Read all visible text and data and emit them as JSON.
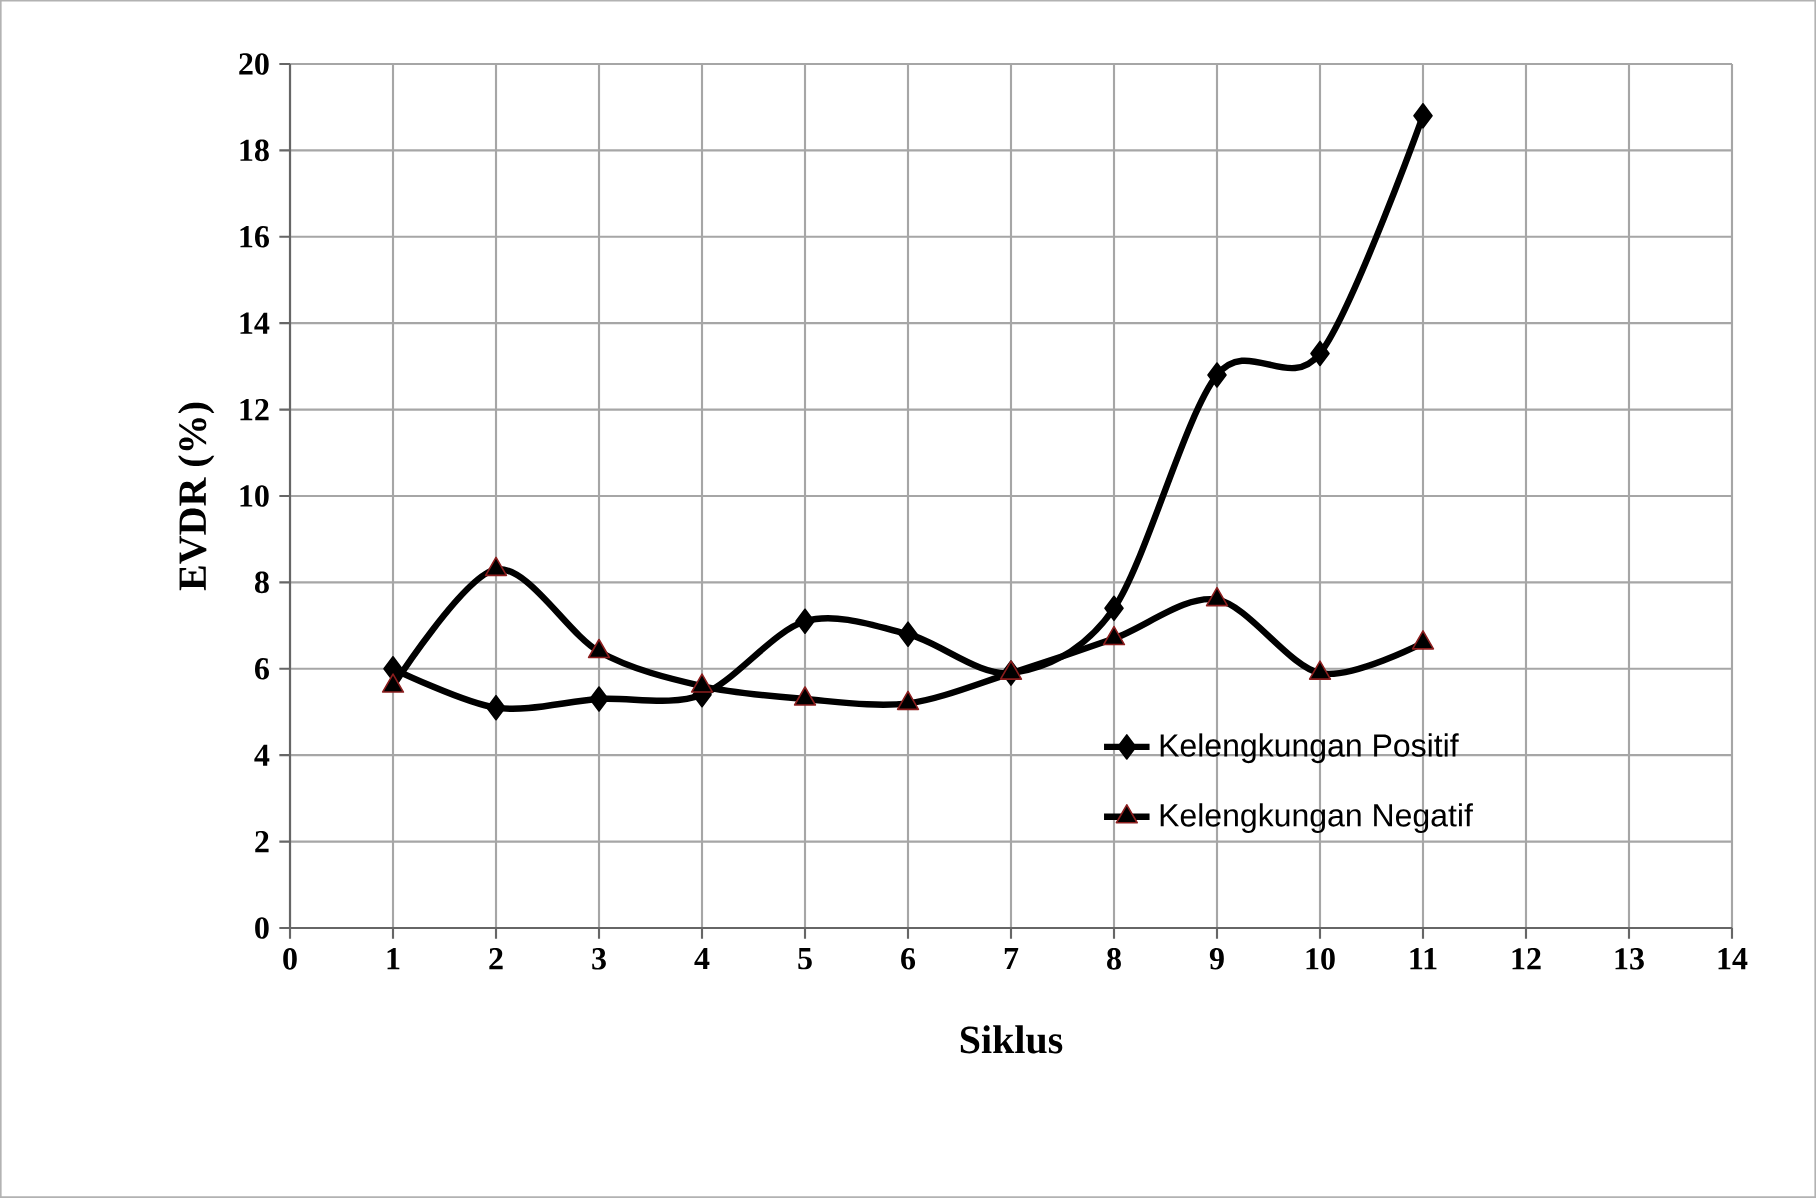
{
  "chart_data": {
    "type": "line",
    "xlabel": "Siklus",
    "ylabel": "EVDR (%)",
    "x": [
      1,
      2,
      3,
      4,
      5,
      6,
      7,
      8,
      9,
      10,
      11
    ],
    "series": [
      {
        "name": "Kelengkungan Positif",
        "color": "#000000",
        "marker": "diamond",
        "values": [
          6.0,
          5.1,
          5.3,
          5.4,
          7.1,
          6.8,
          5.9,
          7.4,
          12.8,
          13.3,
          18.8
        ]
      },
      {
        "name": "Kelengkungan Negatif",
        "color": "#000000",
        "marker": "triangle",
        "values": [
          5.6,
          8.3,
          6.4,
          5.6,
          5.3,
          5.2,
          5.9,
          6.7,
          7.6,
          5.9,
          6.6
        ]
      }
    ],
    "xlim": [
      0,
      14
    ],
    "xticks": [
      0,
      1,
      2,
      3,
      4,
      5,
      6,
      7,
      8,
      9,
      10,
      11,
      12,
      13,
      14
    ],
    "ylim": [
      0,
      20
    ],
    "yticks": [
      0,
      2,
      4,
      6,
      8,
      10,
      12,
      14,
      16,
      18,
      20
    ],
    "grid": true,
    "legend": "bottom right",
    "line_style": "solid"
  }
}
